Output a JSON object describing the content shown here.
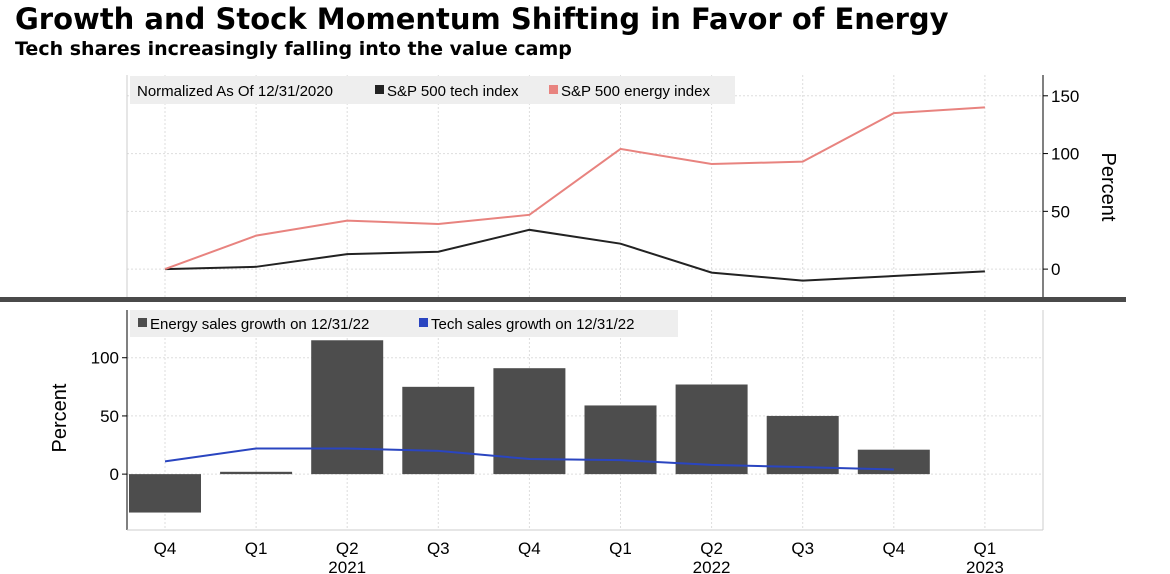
{
  "title": "Growth and Stock Momentum Shifting in Favor of Energy",
  "subtitle": "Tech shares increasingly falling into the value camp",
  "chart_data": [
    {
      "type": "line",
      "legend_note": "Normalized As Of 12/31/2020",
      "ylabel": "Percent",
      "yaxis_side": "right",
      "ylim": [
        -25,
        168
      ],
      "yticks": [
        0,
        50,
        100,
        150
      ],
      "grid": true,
      "legend_placement": "top-left",
      "x": [
        "Q4 2020",
        "Q1 2021",
        "Q2 2021",
        "Q3 2021",
        "Q4 2021",
        "Q1 2022",
        "Q2 2022",
        "Q3 2022",
        "Q4 2022",
        "Q1 2023"
      ],
      "series": [
        {
          "name": "S&P 500 tech index",
          "color": "#222222",
          "values": [
            0,
            2,
            13,
            15,
            34,
            22,
            -3,
            -10,
            -6,
            -2
          ]
        },
        {
          "name": "S&P 500 energy index",
          "color": "#e8837f",
          "values": [
            0,
            29,
            42,
            39,
            47,
            104,
            91,
            93,
            135,
            140
          ]
        }
      ]
    },
    {
      "type": "bar",
      "ylabel": "Percent",
      "yaxis_side": "left",
      "ylim": [
        -48,
        141
      ],
      "yticks": [
        0,
        50,
        100
      ],
      "grid": true,
      "legend_placement": "top-left",
      "categories": [
        "Q4",
        "Q1",
        "Q2",
        "Q3",
        "Q4",
        "Q1",
        "Q2",
        "Q3",
        "Q4",
        "Q1"
      ],
      "year_labels": [
        "",
        "",
        "2021",
        "",
        "",
        "",
        "2022",
        "",
        "",
        "2023"
      ],
      "series": [
        {
          "name": "Energy sales growth on 12/31/22",
          "type": "bar",
          "color": "#4d4d4d",
          "values": [
            -33,
            2,
            115,
            75,
            91,
            59,
            77,
            50,
            21,
            null
          ]
        },
        {
          "name": "Tech sales growth on 12/31/22",
          "type": "line",
          "color": "#2a45c0",
          "values": [
            11,
            22,
            22,
            20,
            13,
            12,
            8,
            6,
            4,
            null
          ]
        }
      ]
    }
  ]
}
